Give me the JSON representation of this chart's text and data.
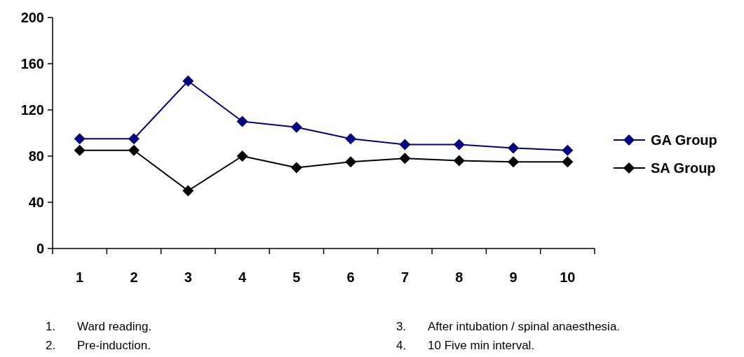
{
  "chart_data": {
    "type": "line",
    "categories": [
      "1",
      "2",
      "3",
      "4",
      "5",
      "6",
      "7",
      "8",
      "9",
      "10"
    ],
    "series": [
      {
        "name": "GA Group",
        "color": "#000080",
        "values": [
          95,
          95,
          145,
          110,
          105,
          95,
          90,
          90,
          87,
          85
        ]
      },
      {
        "name": "SA Group",
        "color": "#000000",
        "values": [
          85,
          85,
          50,
          80,
          70,
          75,
          78,
          76,
          75,
          75
        ]
      }
    ],
    "ylim": [
      0,
      200
    ],
    "yticks": [
      0,
      40,
      80,
      120,
      160,
      200
    ],
    "grid": false,
    "legend": "right",
    "marker": "diamond",
    "line_style": "solid",
    "annotations": [
      "1.\tWard reading.",
      "2.\tPre-induction.",
      "3.\tAfter intubation / spinal anaesthesia.",
      "4.\t10  Five min interval."
    ]
  }
}
